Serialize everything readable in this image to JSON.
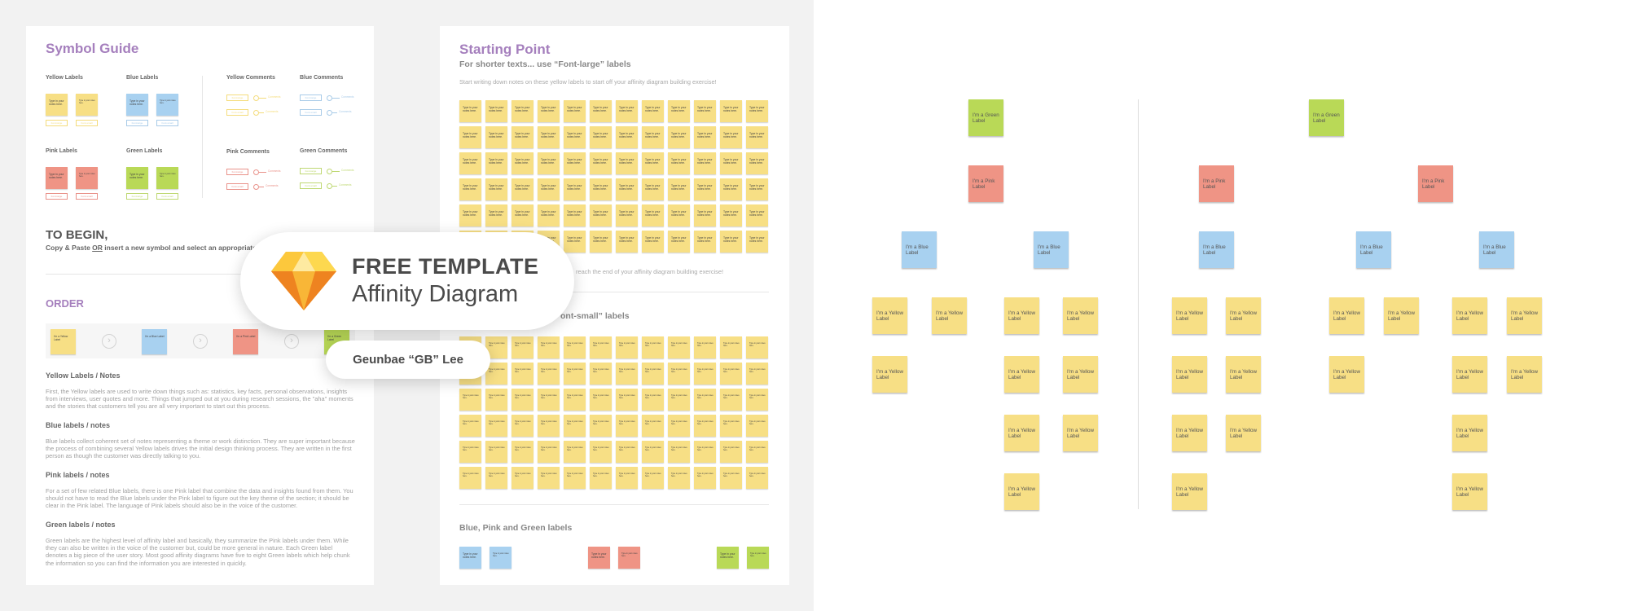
{
  "colors": {
    "yellow": "#f7df85",
    "blue": "#a8d1f0",
    "pink": "#ef9485",
    "green": "#b9d957",
    "purple": "#a57fbd",
    "yellow_line": "#f4dc7c",
    "blue_line": "#a8cbe8",
    "pink_line": "#e9928a",
    "green_line": "#bfd873"
  },
  "symbol_guide": {
    "title": "Symbol Guide",
    "label_groups": [
      {
        "name": "Yellow Labels",
        "color": "yellow"
      },
      {
        "name": "Blue Labels",
        "color": "blue"
      },
      {
        "name": "Pink Labels",
        "color": "pink"
      },
      {
        "name": "Green Labels",
        "color": "green"
      }
    ],
    "comment_groups": [
      {
        "name": "Yellow Comments",
        "color": "yellow"
      },
      {
        "name": "Blue Comments",
        "color": "blue"
      },
      {
        "name": "Pink Comments",
        "color": "pink"
      },
      {
        "name": "Green Comments",
        "color": "green"
      }
    ],
    "note_text": "Type in your notes here.",
    "font_large": "Font-large",
    "font_small": "Font-small",
    "comments": "Comments"
  },
  "to_begin": {
    "title": "TO BEGIN,",
    "text_pre": "Copy & Paste ",
    "text_or": "OR",
    "text_post": " insert a new symbol and select an appropriate colo"
  },
  "order": {
    "title": "ORDER",
    "steps": [
      {
        "label": "I'm a Yellow Label",
        "color": "yellow"
      },
      {
        "label": "I'm a Blue Label",
        "color": "blue"
      },
      {
        "label": "I'm a Pink Label",
        "color": "pink"
      },
      {
        "label": "I'm a Green Label",
        "color": "green"
      }
    ],
    "arrow_icon": "chevron-right-circle-icon"
  },
  "notes_sections": [
    {
      "title": "Yellow Labels / Notes",
      "body": "First, the Yellow labels are used to write down things such as: statistics, key facts, personal observations, insights from interviews, user quotes and more. Things that jumped out at you during research sessions, the \"aha\" moments and the stories that customers tell you are all very important to start out this process."
    },
    {
      "title": "Blue labels / notes",
      "body": "Blue labels collect coherent set of notes representing a theme or work distinction. They are super important because the process of combining several Yellow labels drives the initial design thinking process. They are written in the first person as though the customer was directly talking to you."
    },
    {
      "title": "Pink labels / notes",
      "body": "For a set of few related Blue labels, there is one Pink label that combine the data and insights found from them. You should not have to read the Blue labels under the Pink label to figure out the key theme of the section; it should be clear in the Pink label. The language of Pink labels should also be in the voice of the customer."
    },
    {
      "title": "Green labels / notes",
      "body": "Green labels are the highest level of affinity label and basically, they summarize the Pink labels under them. While they can also be written in the voice of the customer but, could be more general in nature. Each Green label denotes a big piece of the user story. Most good affinity diagrams have five to eight Green labels which help chunk the information so you can find the information you are interested in quickly."
    }
  ],
  "starting_point": {
    "title": "Starting Point",
    "subtitle": "For shorter texts... use “Font-large” labels",
    "description": "Start writing down notes on these yellow labels to start off your affinity diagram building exercise!",
    "end_text": "reach the end of your affinity diagram building exercise!",
    "small_heading": "ont-small” labels",
    "bpg_heading": "Blue, Pink and Green labels",
    "note_text": "Type in your notes here.",
    "grid_rows": 6,
    "grid_cols": 12,
    "bpg_notes": [
      "blue",
      "blue",
      "pink",
      "pink",
      "green",
      "green"
    ]
  },
  "banner": {
    "line1": "FREE TEMPLATE",
    "line2": "Affinity Diagram",
    "author": "Geunbae “GB” Lee",
    "logo_icon": "sketch-diamond-icon"
  },
  "diagram": {
    "green_text": "I'm a Green Label",
    "pink_text": "I'm a Pink Label",
    "blue_text": "I'm a Blue Label",
    "yellow_text": "I'm a Yellow Label",
    "trees": [
      {
        "pinks": [
          {
            "blues": [
              [
                2,
                1
              ],
              [
                4,
                3
              ]
            ]
          }
        ]
      },
      {
        "pinks": [
          {
            "blues": [
              [
                4,
                3
              ]
            ]
          },
          {
            "blues": [
              [
                2,
                1
              ],
              [
                4,
                2
              ]
            ]
          }
        ]
      }
    ]
  }
}
